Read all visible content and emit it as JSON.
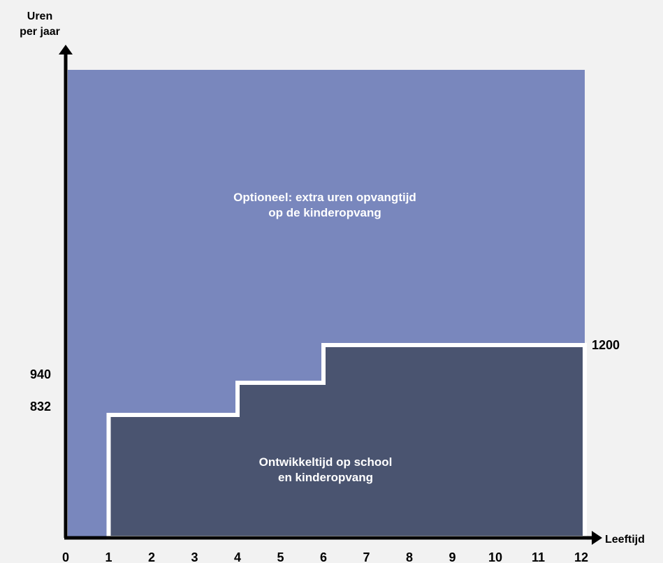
{
  "chart_data": {
    "type": "area",
    "y_axis_title_line1": "Uren",
    "y_axis_title_line2": "per jaar",
    "x_axis_title": "Leeftijd",
    "x_ticks": [
      "0",
      "1",
      "2",
      "3",
      "4",
      "5",
      "6",
      "7",
      "8",
      "9",
      "10",
      "11",
      "12"
    ],
    "y_value_labels": [
      {
        "value": 832,
        "text": "832",
        "side": "left"
      },
      {
        "value": 940,
        "text": "940",
        "side": "left"
      },
      {
        "value": 1200,
        "text": "1200",
        "side": "right"
      }
    ],
    "xlim": [
      0,
      12
    ],
    "series": [
      {
        "name_line1": "Optioneel: extra uren opvangtijd",
        "name_line2": "op de kinderopvang",
        "color": "#7987bd",
        "age_range": [
          0,
          12
        ]
      },
      {
        "name_line1": "Ontwikkeltijd op school",
        "name_line2": "en kinderopvang",
        "color": "#4a5470",
        "outline_color": "#ffffff",
        "steps": [
          {
            "from_age": 1,
            "to_age": 4,
            "hours": 832
          },
          {
            "from_age": 4,
            "to_age": 6,
            "hours": 940
          },
          {
            "from_age": 6,
            "to_age": 12,
            "hours": 1200
          }
        ]
      }
    ],
    "axis_color": "#000000",
    "grid": false
  }
}
